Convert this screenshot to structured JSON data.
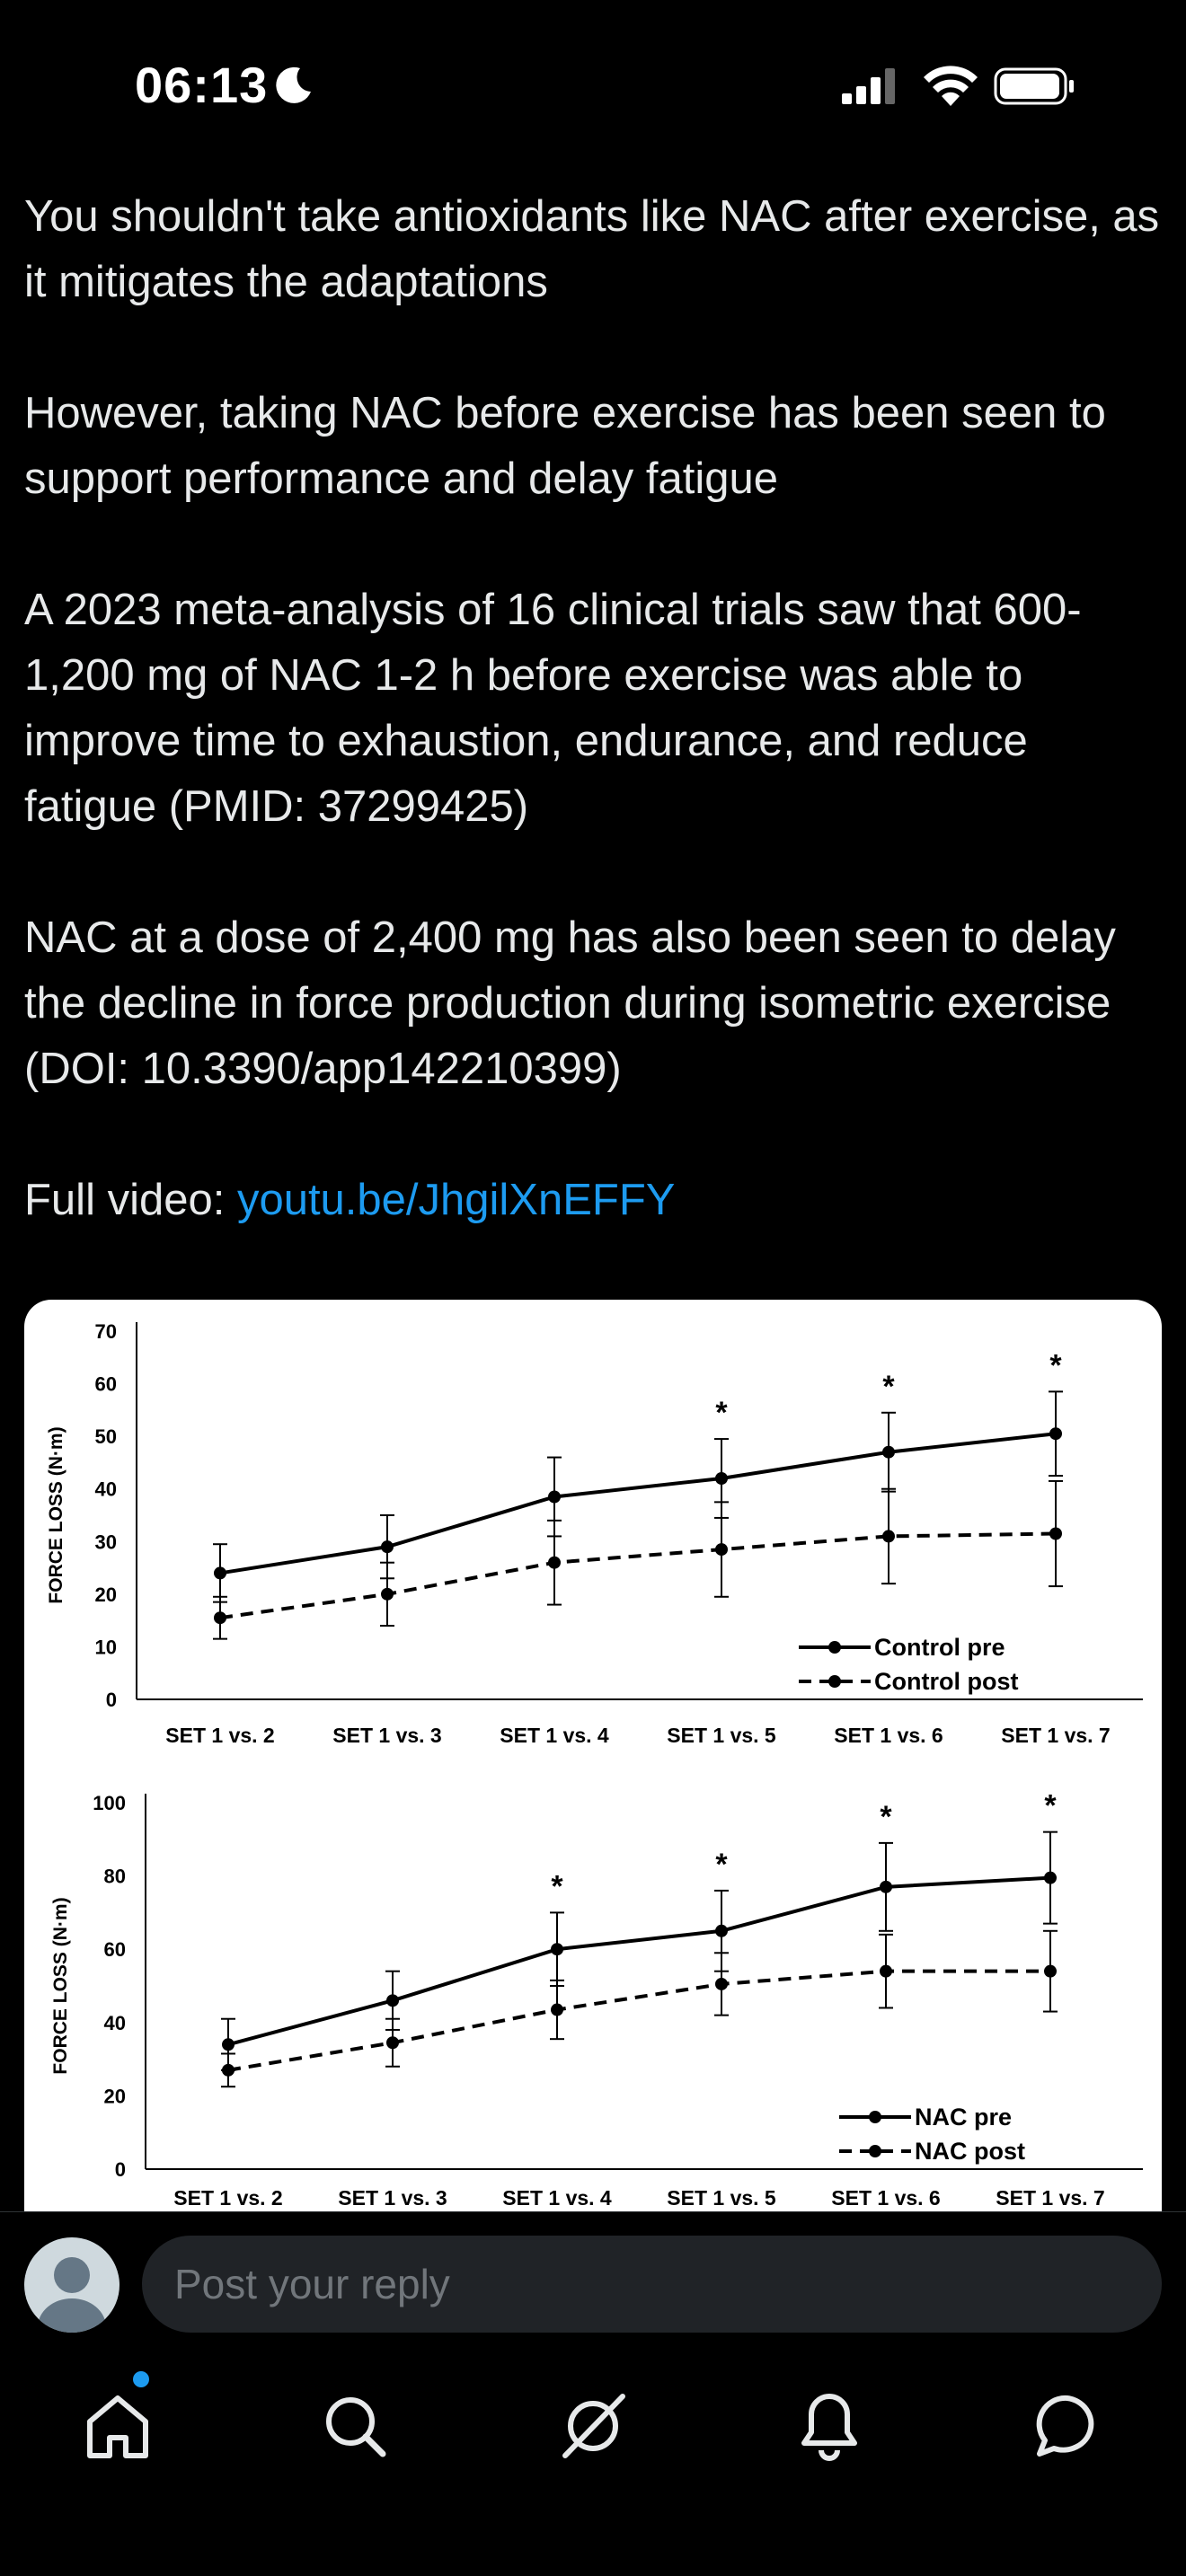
{
  "status_bar": {
    "time": "06:13",
    "icons": [
      "moon-icon",
      "cellular-signal-icon",
      "wifi-icon",
      "battery-icon"
    ]
  },
  "post": {
    "paragraphs": [
      "You shouldn't take antioxidants like NAC after exercise, as it mitigates the adaptations",
      "However, taking NAC before exercise has been seen to support performance and delay fatigue",
      "A 2023 meta-analysis of 16 clinical trials saw that 600-1,200 mg of NAC 1-2 h before exercise was able to improve time to exhaustion, endurance, and reduce fatigue (PMID: 37299425)",
      "NAC at a dose of 2,400 mg has also been seen to delay the decline in force production during isometric exercise (DOI: 10.3390/app142210399)"
    ],
    "video_prefix": "Full video: ",
    "video_link": "youtu.be/JhgilXnEFFY"
  },
  "chart_data": [
    {
      "type": "line",
      "categories": [
        "SET 1 vs. 2",
        "SET 1 vs. 3",
        "SET 1 vs. 4",
        "SET 1 vs. 5",
        "SET 1 vs. 6",
        "SET 1 vs. 7"
      ],
      "ylabel": "FORCE LOSS (N·m)",
      "ylim": [
        0,
        70
      ],
      "yticks": [
        "0",
        "10",
        "20",
        "30",
        "40",
        "50",
        "60",
        "70"
      ],
      "series": [
        {
          "name": "Control pre",
          "style": "solid",
          "values": [
            24,
            29,
            38.5,
            42,
            47,
            50.5
          ],
          "error": [
            5.5,
            6,
            7.5,
            7.5,
            7.5,
            8
          ]
        },
        {
          "name": "Control post",
          "style": "dashed",
          "values": [
            15.5,
            20,
            26,
            28.5,
            31,
            31.5
          ],
          "error": [
            4,
            6,
            8,
            9,
            9,
            10
          ]
        }
      ],
      "annotations": [
        "",
        "",
        "",
        "*",
        "*",
        "*"
      ],
      "legend": "bottom-right"
    },
    {
      "type": "line",
      "categories": [
        "SET 1 vs. 2",
        "SET 1 vs. 3",
        "SET 1 vs. 4",
        "SET 1 vs. 5",
        "SET 1 vs. 6",
        "SET 1 vs. 7"
      ],
      "ylabel": "FORCE LOSS (N·m)",
      "ylim": [
        0,
        100
      ],
      "yticks": [
        "0",
        "20",
        "40",
        "60",
        "80",
        "100"
      ],
      "series": [
        {
          "name": "NAC pre",
          "style": "solid",
          "values": [
            34,
            46,
            60,
            65,
            77,
            79.5
          ],
          "error": [
            7,
            8,
            10,
            11,
            12,
            12.5
          ]
        },
        {
          "name": "NAC post",
          "style": "dashed",
          "values": [
            27,
            34.5,
            43.5,
            50.5,
            54,
            54
          ],
          "error": [
            4.5,
            6.5,
            8,
            8.5,
            10,
            11
          ]
        }
      ],
      "annotations": [
        "",
        "",
        "*",
        "*",
        "*",
        "*"
      ],
      "legend": "bottom-right"
    }
  ],
  "reply": {
    "placeholder": "Post your reply"
  },
  "tab_bar": {
    "tabs": [
      "home-icon",
      "search-icon",
      "grok-icon",
      "notifications-icon",
      "messages-icon"
    ],
    "home_badge_color": "#1d9bf0"
  },
  "colors": {
    "background": "#000000",
    "text": "#e7e9ea",
    "link": "#1d9bf0",
    "muted": "#71767b"
  }
}
